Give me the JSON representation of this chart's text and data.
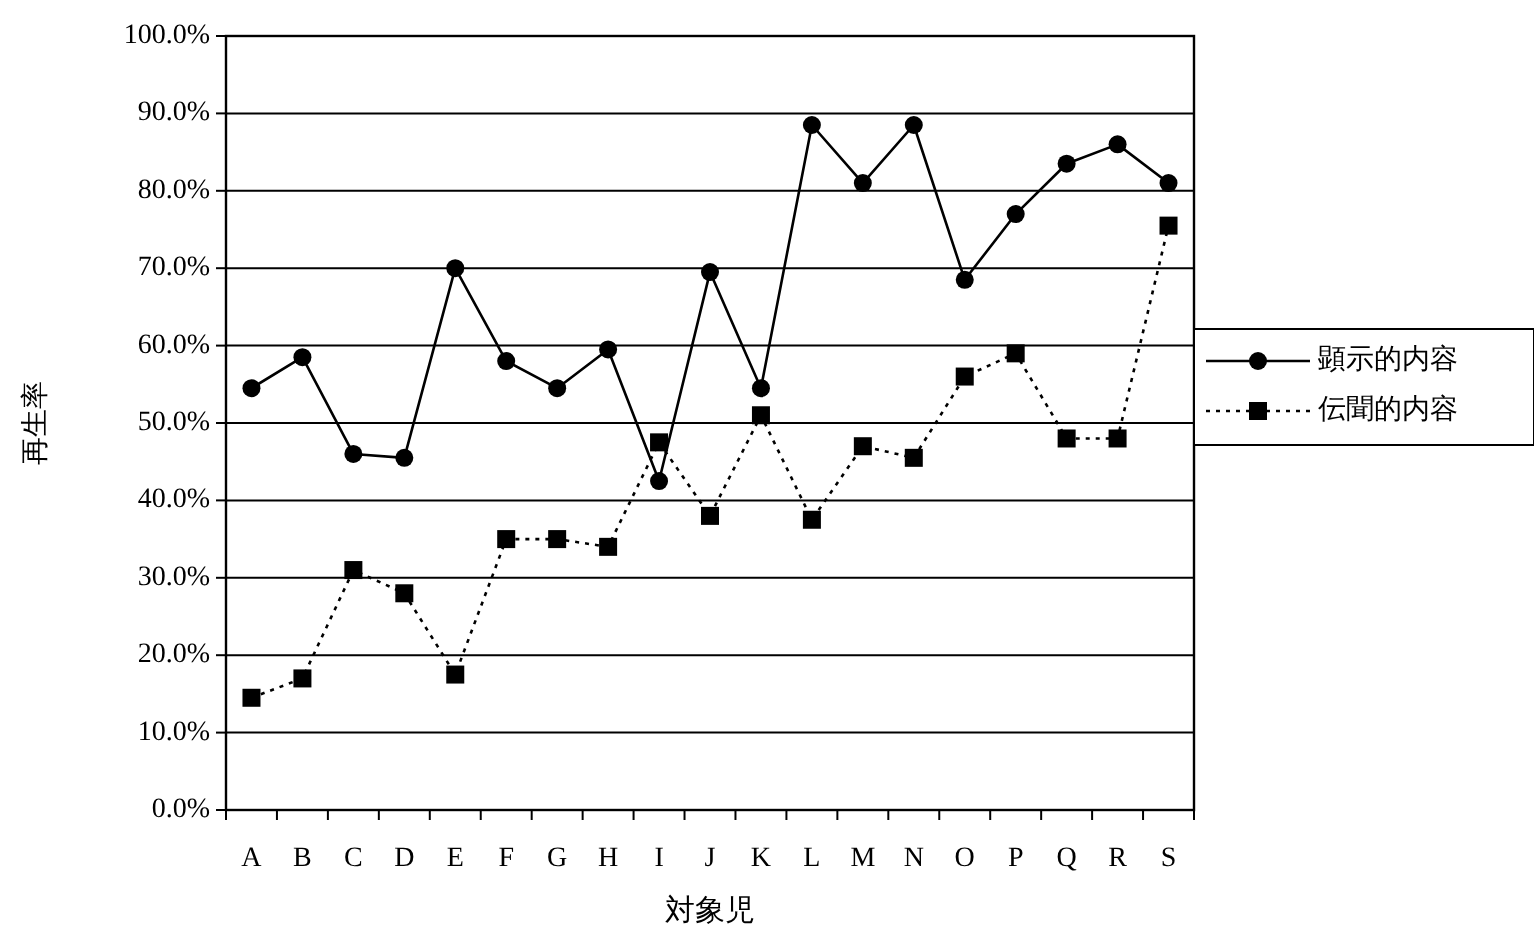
{
  "chart_data": {
    "type": "line",
    "xlabel": "対象児",
    "ylabel": "再生率",
    "categories": [
      "A",
      "B",
      "C",
      "D",
      "E",
      "F",
      "G",
      "H",
      "I",
      "J",
      "K",
      "L",
      "M",
      "N",
      "O",
      "P",
      "Q",
      "R",
      "S"
    ],
    "series": [
      {
        "name": "顕示的内容",
        "color": "#000000",
        "marker": "circle",
        "line_style": "solid",
        "values": [
          54.5,
          58.5,
          46,
          45.5,
          70,
          58,
          54.5,
          59.5,
          42.5,
          69.5,
          54.5,
          88.5,
          81,
          88.5,
          68.5,
          77,
          83.5,
          86,
          81
        ]
      },
      {
        "name": "伝聞的内容",
        "color": "#000000",
        "marker": "square",
        "line_style": "dotted",
        "values": [
          14.5,
          17,
          31,
          28,
          17.5,
          35,
          35,
          34,
          47.5,
          38,
          51,
          37.5,
          47,
          45.5,
          56,
          59,
          48,
          48,
          75.5
        ]
      }
    ],
    "ylim": [
      0,
      100
    ],
    "yticks": [
      {
        "value": 0,
        "label": "0.0%"
      },
      {
        "value": 10,
        "label": "10.0%"
      },
      {
        "value": 20,
        "label": "20.0%"
      },
      {
        "value": 30,
        "label": "30.0%"
      },
      {
        "value": 40,
        "label": "40.0%"
      },
      {
        "value": 50,
        "label": "50.0%"
      },
      {
        "value": 60,
        "label": "60.0%"
      },
      {
        "value": 70,
        "label": "70.0%"
      },
      {
        "value": 80,
        "label": "80.0%"
      },
      {
        "value": 90,
        "label": "90.0%"
      },
      {
        "value": 100,
        "label": "100.0%"
      }
    ],
    "grid": "y",
    "legend": "right"
  }
}
